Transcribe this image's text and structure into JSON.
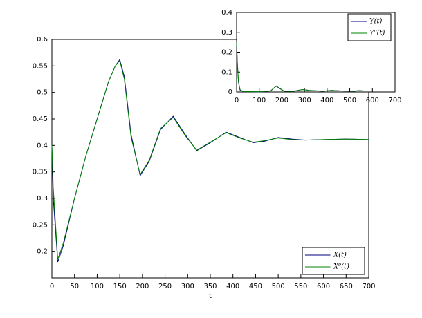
{
  "chart_data": [
    {
      "type": "line",
      "x_label": "t",
      "x": [
        0,
        3,
        13,
        25,
        50,
        75,
        100,
        125,
        140,
        150,
        160,
        175,
        195,
        215,
        240,
        268,
        295,
        320,
        350,
        385,
        415,
        445,
        470,
        500,
        530,
        560,
        600,
        650,
        700
      ],
      "series": [
        {
          "name": "X(t)",
          "color": "#000080",
          "values": [
            0.4,
            0.3,
            0.18,
            0.21,
            0.3,
            0.38,
            0.45,
            0.52,
            0.55,
            0.562,
            0.53,
            0.42,
            0.343,
            0.37,
            0.43,
            0.455,
            0.42,
            0.39,
            0.405,
            0.425,
            0.415,
            0.405,
            0.408,
            0.415,
            0.412,
            0.41,
            0.411,
            0.412,
            0.411
          ]
        },
        {
          "name": "X⁰(t)",
          "color": "#008000",
          "values": [
            0.4,
            0.32,
            0.185,
            0.215,
            0.3,
            0.38,
            0.45,
            0.52,
            0.55,
            0.56,
            0.525,
            0.415,
            0.345,
            0.372,
            0.432,
            0.453,
            0.418,
            0.391,
            0.406,
            0.424,
            0.414,
            0.406,
            0.409,
            0.414,
            0.411,
            0.41,
            0.411,
            0.412,
            0.411
          ]
        }
      ],
      "xlim": [
        0,
        700
      ],
      "xticks": [
        0,
        50,
        100,
        150,
        200,
        250,
        300,
        350,
        400,
        450,
        500,
        550,
        600,
        650,
        700
      ],
      "ylim": [
        0.15,
        0.6
      ],
      "yticks": [
        0.2,
        0.25,
        0.3,
        0.35,
        0.4,
        0.45,
        0.5,
        0.55,
        0.6
      ],
      "legend": "lower right"
    },
    {
      "type": "line",
      "x": [
        0,
        3,
        8,
        15,
        30,
        100,
        150,
        165,
        175,
        190,
        210,
        250,
        280,
        295,
        320,
        380,
        420,
        460,
        520,
        540,
        560,
        620,
        700
      ],
      "series": [
        {
          "name": "Y(t)",
          "color": "#000080",
          "values": [
            0.25,
            0.15,
            0.05,
            0.01,
            0.002,
            0.001,
            0.005,
            0.02,
            0.03,
            0.018,
            0.004,
            0.003,
            0.01,
            0.012,
            0.008,
            0.004,
            0.008,
            0.005,
            0.004,
            0.007,
            0.005,
            0.005,
            0.005
          ]
        },
        {
          "name": "Y⁰(t)",
          "color": "#008000",
          "values": [
            0.25,
            0.16,
            0.055,
            0.012,
            0.002,
            0.001,
            0.005,
            0.019,
            0.029,
            0.017,
            0.004,
            0.003,
            0.01,
            0.012,
            0.008,
            0.004,
            0.008,
            0.005,
            0.004,
            0.007,
            0.005,
            0.005,
            0.005
          ]
        }
      ],
      "xlim": [
        0,
        700
      ],
      "xticks": [
        0,
        100,
        200,
        300,
        400,
        500,
        600,
        700
      ],
      "ylim": [
        0,
        0.4
      ],
      "yticks": [
        0,
        0.1,
        0.2,
        0.3,
        0.4
      ],
      "legend": "upper right"
    }
  ]
}
